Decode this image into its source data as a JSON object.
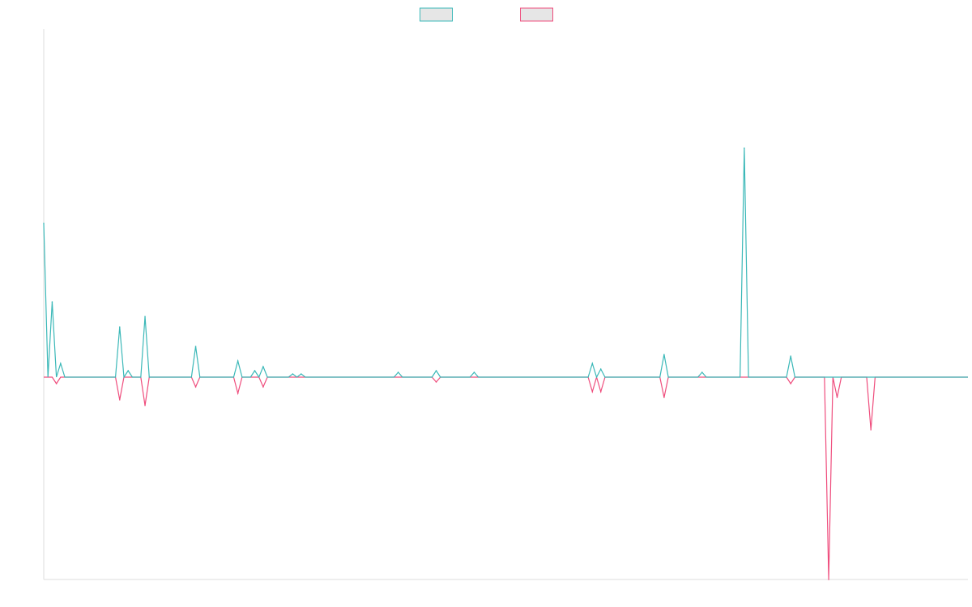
{
  "chart_data": {
    "type": "line",
    "title": "",
    "xlabel": "",
    "ylabel": "",
    "grid": false,
    "legend": {
      "placement": "top-center",
      "entries": [
        {
          "label": "",
          "color": "#3bb8b8",
          "fill": "#e6e6e6"
        },
        {
          "label": "",
          "color": "#ef4d7d",
          "fill": "#e6e6e6"
        }
      ]
    },
    "ylim": [
      -250,
      430
    ],
    "x": [
      0,
      1,
      2,
      3,
      4,
      5,
      6,
      7,
      8,
      9,
      10,
      11,
      12,
      13,
      14,
      15,
      16,
      17,
      18,
      19,
      20,
      21,
      22,
      23,
      24,
      25,
      26,
      27,
      28,
      29,
      30,
      31,
      32,
      33,
      34,
      35,
      36,
      37,
      38,
      39,
      40,
      41,
      42,
      43,
      44,
      45,
      46,
      47,
      48,
      49,
      50,
      51,
      52,
      53,
      54,
      55,
      56,
      57,
      58,
      59,
      60,
      61,
      62,
      63,
      64,
      65,
      66,
      67,
      68,
      69,
      70,
      71,
      72,
      73,
      74,
      75,
      76,
      77,
      78,
      79,
      80,
      81,
      82,
      83,
      84,
      85,
      86,
      87,
      88,
      89,
      90,
      91,
      92,
      93,
      94,
      95,
      96,
      97,
      98,
      99,
      100,
      101,
      102,
      103,
      104,
      105,
      106,
      107,
      108,
      109,
      110,
      111,
      112,
      113,
      114,
      115,
      116,
      117,
      118,
      119,
      120,
      121,
      122,
      123,
      124,
      125,
      126,
      127,
      128,
      129,
      130,
      131,
      132,
      133,
      134,
      135,
      136,
      137,
      138,
      139,
      140,
      141,
      142,
      143,
      144,
      145,
      146,
      147,
      148,
      149,
      150,
      151,
      152,
      153,
      154,
      155,
      156,
      157,
      158,
      159,
      160,
      161,
      162,
      163,
      164,
      165,
      166,
      167,
      168,
      169,
      170,
      171,
      172,
      173,
      174,
      175,
      176,
      177,
      178,
      179,
      180,
      181,
      182,
      183,
      184,
      185,
      186,
      187,
      188,
      189,
      190,
      191,
      192,
      193,
      194,
      195,
      196,
      197,
      198,
      199,
      200,
      201,
      202,
      203,
      204,
      205,
      206,
      207,
      208,
      209,
      210,
      211,
      212,
      213,
      214,
      215,
      216,
      217,
      218,
      219
    ],
    "series": [
      {
        "color": "#3bb8b8",
        "values": [
          190,
          0,
          93,
          0,
          17,
          0,
          0,
          0,
          0,
          0,
          0,
          0,
          0,
          0,
          0,
          0,
          0,
          0,
          62,
          0,
          8,
          0,
          0,
          0,
          75,
          0,
          0,
          0,
          0,
          0,
          0,
          0,
          0,
          0,
          0,
          0,
          38,
          0,
          0,
          0,
          0,
          0,
          0,
          0,
          0,
          0,
          20,
          0,
          0,
          0,
          8,
          0,
          13,
          0,
          0,
          0,
          0,
          0,
          0,
          4,
          0,
          4,
          0,
          0,
          0,
          0,
          0,
          0,
          0,
          0,
          0,
          0,
          0,
          0,
          0,
          0,
          0,
          0,
          0,
          0,
          0,
          0,
          0,
          0,
          6,
          0,
          0,
          0,
          0,
          0,
          0,
          0,
          0,
          8,
          0,
          0,
          0,
          0,
          0,
          0,
          0,
          0,
          6,
          0,
          0,
          0,
          0,
          0,
          0,
          0,
          0,
          0,
          0,
          0,
          0,
          0,
          0,
          0,
          0,
          0,
          0,
          0,
          0,
          0,
          0,
          0,
          0,
          0,
          0,
          0,
          17,
          0,
          10,
          0,
          0,
          0,
          0,
          0,
          0,
          0,
          0,
          0,
          0,
          0,
          0,
          0,
          0,
          28,
          0,
          0,
          0,
          0,
          0,
          0,
          0,
          0,
          6,
          0,
          0,
          0,
          0,
          0,
          0,
          0,
          0,
          0,
          283,
          0,
          0,
          0,
          0,
          0,
          0,
          0,
          0,
          0,
          0,
          26,
          0,
          0,
          0,
          0,
          0,
          0,
          0,
          0,
          0,
          0,
          0,
          0,
          0,
          0,
          0,
          0,
          0,
          0,
          0,
          0,
          0,
          0,
          0,
          0,
          0,
          0,
          0,
          0,
          0,
          0,
          0,
          0,
          0,
          0,
          0,
          0,
          0,
          0,
          0,
          0,
          0,
          0
        ]
      },
      {
        "color": "#ef4d7d",
        "values": [
          0,
          0,
          0,
          -8,
          0,
          0,
          0,
          0,
          0,
          0,
          0,
          0,
          0,
          0,
          0,
          0,
          0,
          0,
          -28,
          0,
          0,
          0,
          0,
          0,
          -35,
          0,
          0,
          0,
          0,
          0,
          0,
          0,
          0,
          0,
          0,
          0,
          -12,
          0,
          0,
          0,
          0,
          0,
          0,
          0,
          0,
          0,
          -20,
          0,
          0,
          0,
          0,
          0,
          -12,
          0,
          0,
          0,
          0,
          0,
          0,
          0,
          0,
          0,
          0,
          0,
          0,
          0,
          0,
          0,
          0,
          0,
          0,
          0,
          0,
          0,
          0,
          0,
          0,
          0,
          0,
          0,
          0,
          0,
          0,
          0,
          0,
          0,
          0,
          0,
          0,
          0,
          0,
          0,
          0,
          -6,
          0,
          0,
          0,
          0,
          0,
          0,
          0,
          0,
          0,
          0,
          0,
          0,
          0,
          0,
          0,
          0,
          0,
          0,
          0,
          0,
          0,
          0,
          0,
          0,
          0,
          0,
          0,
          0,
          0,
          0,
          0,
          0,
          0,
          0,
          0,
          0,
          -18,
          0,
          -18,
          0,
          0,
          0,
          0,
          0,
          0,
          0,
          0,
          0,
          0,
          0,
          0,
          0,
          0,
          -25,
          0,
          0,
          0,
          0,
          0,
          0,
          0,
          0,
          0,
          0,
          0,
          0,
          0,
          0,
          0,
          0,
          0,
          0,
          0,
          0,
          0,
          0,
          0,
          0,
          0,
          0,
          0,
          0,
          0,
          -8,
          0,
          0,
          0,
          0,
          0,
          0,
          0,
          0,
          -250,
          0,
          -25,
          0,
          0,
          0,
          0,
          0,
          0,
          0,
          -65,
          0,
          0,
          0,
          0,
          0,
          0,
          0,
          0,
          0,
          0,
          0,
          0,
          0,
          0,
          0,
          0,
          0,
          0,
          0,
          0,
          0,
          0,
          0
        ]
      }
    ]
  }
}
